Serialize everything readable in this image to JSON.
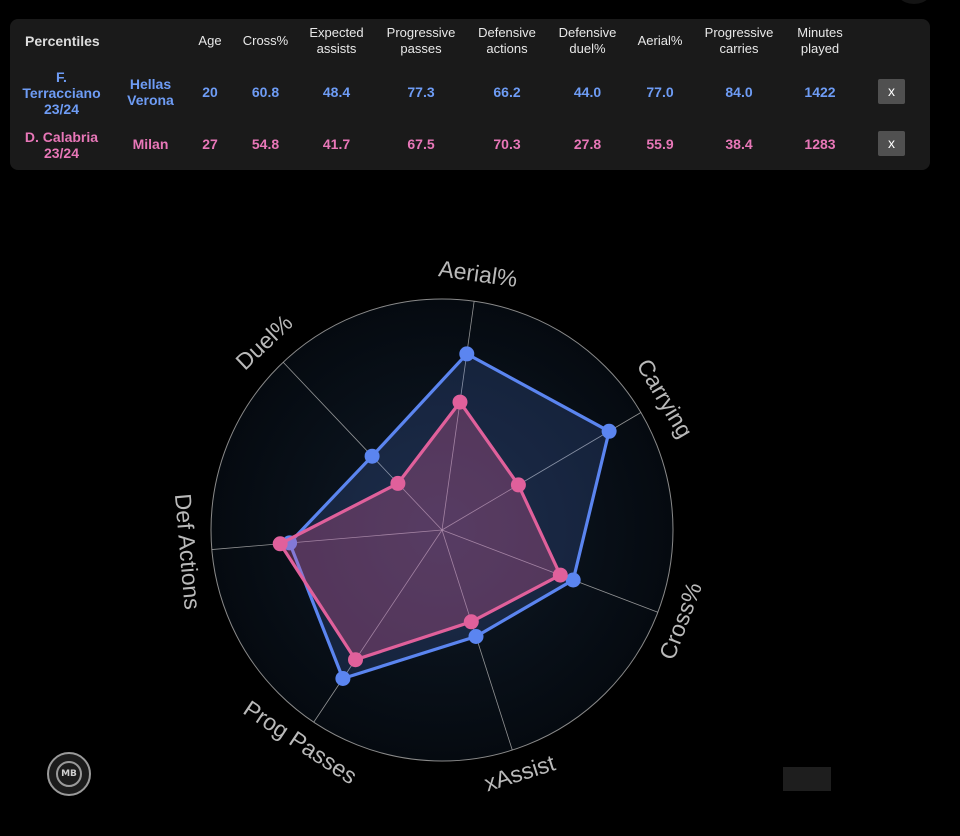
{
  "table": {
    "title": "Percentiles",
    "headers": [
      {
        "key": "age",
        "label": "Age"
      },
      {
        "key": "cross",
        "label": "Cross%"
      },
      {
        "key": "xa",
        "label": "Expected\nassists"
      },
      {
        "key": "prog_passes",
        "label": "Progressive\npasses"
      },
      {
        "key": "def_actions",
        "label": "Defensive\nactions"
      },
      {
        "key": "def_duel",
        "label": "Defensive\nduel%"
      },
      {
        "key": "aerial",
        "label": "Aerial%"
      },
      {
        "key": "prog_carries",
        "label": "Progressive\ncarries"
      },
      {
        "key": "minutes",
        "label": "Minutes\nplayed"
      }
    ],
    "rows": [
      {
        "player": "F.\nTerracciano\n23/24",
        "team": "Hellas\nVerona",
        "age": "20",
        "cross": "60.8",
        "xa": "48.4",
        "prog_passes": "77.3",
        "def_actions": "66.2",
        "def_duel": "44.0",
        "aerial": "77.0",
        "prog_carries": "84.0",
        "minutes": "1422",
        "remove_label": "x"
      },
      {
        "player": "D. Calabria\n23/24",
        "team": "Milan",
        "age": "27",
        "cross": "54.8",
        "xa": "41.7",
        "prog_passes": "67.5",
        "def_actions": "70.3",
        "def_duel": "27.8",
        "aerial": "55.9",
        "prog_carries": "38.4",
        "minutes": "1283",
        "remove_label": "x"
      }
    ]
  },
  "chart_data": {
    "type": "radar",
    "axes": [
      "Aerial%",
      "Carrying",
      "Cross%",
      "xAssist",
      "Prog Passes",
      "Def Actions",
      "Duel%"
    ],
    "range": [
      0,
      100
    ],
    "grid": true,
    "series": [
      {
        "color": "#5b85f0",
        "values": [
          77.0,
          84.0,
          60.8,
          48.4,
          77.3,
          66.2,
          44.0
        ]
      },
      {
        "color": "#e0609b",
        "values": [
          55.9,
          38.4,
          54.8,
          41.7,
          67.5,
          70.3,
          27.8
        ]
      }
    ]
  },
  "logo": {
    "text": "MB"
  }
}
